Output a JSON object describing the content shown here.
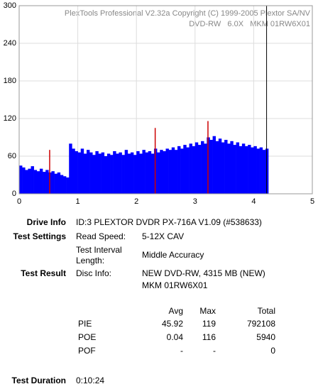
{
  "chart_data": {
    "type": "bar",
    "title": "PlexTools Professional V2.32a Copyright (C) 1999-2005 Plextor SA/NV",
    "subtitle": "DVD-RW   6.0X   MKM 01RW6X01",
    "xlim": [
      0,
      5
    ],
    "xticks": [
      0,
      1,
      2,
      3,
      4,
      5
    ],
    "ylim": [
      0,
      300
    ],
    "yticks": [
      0,
      60,
      120,
      180,
      240,
      300
    ],
    "grid": true,
    "bar_width": 0.05,
    "marker_x": 4.22,
    "series": [
      {
        "color": "#0000ff",
        "x": [
          0,
          0.05,
          0.1,
          0.15,
          0.2,
          0.25,
          0.3,
          0.35,
          0.4,
          0.45,
          0.5,
          0.55,
          0.6,
          0.65,
          0.7,
          0.75,
          0.8,
          0.85,
          0.9,
          0.95,
          1,
          1.05,
          1.1,
          1.15,
          1.2,
          1.25,
          1.3,
          1.35,
          1.4,
          1.45,
          1.5,
          1.55,
          1.6,
          1.65,
          1.7,
          1.75,
          1.8,
          1.85,
          1.9,
          1.95,
          2,
          2.05,
          2.1,
          2.15,
          2.2,
          2.25,
          2.3,
          2.35,
          2.4,
          2.45,
          2.5,
          2.55,
          2.6,
          2.65,
          2.7,
          2.75,
          2.8,
          2.85,
          2.9,
          2.95,
          3,
          3.05,
          3.1,
          3.15,
          3.2,
          3.25,
          3.3,
          3.35,
          3.4,
          3.45,
          3.5,
          3.55,
          3.6,
          3.65,
          3.7,
          3.75,
          3.8,
          3.85,
          3.9,
          3.95,
          4,
          4.05,
          4.1,
          4.15,
          4.2
        ],
        "values": [
          45,
          42,
          38,
          40,
          44,
          38,
          36,
          40,
          35,
          38,
          34,
          36,
          32,
          34,
          30,
          28,
          26,
          80,
          72,
          68,
          66,
          72,
          64,
          70,
          66,
          62,
          68,
          64,
          66,
          60,
          64,
          62,
          68,
          64,
          66,
          62,
          70,
          64,
          66,
          62,
          68,
          64,
          70,
          66,
          68,
          64,
          72,
          66,
          70,
          68,
          72,
          70,
          74,
          70,
          76,
          72,
          78,
          74,
          80,
          76,
          82,
          78,
          84,
          80,
          90,
          86,
          92,
          84,
          88,
          82,
          86,
          80,
          84,
          78,
          82,
          76,
          80,
          76,
          78,
          74,
          76,
          72,
          74,
          70,
          72
        ]
      },
      {
        "color": "#cc0000",
        "x": [
          0.52,
          2.32,
          3.22
        ],
        "values": [
          70,
          105,
          116
        ]
      }
    ]
  },
  "info": {
    "drive_info": {
      "label": "Drive Info",
      "value": "ID:3 PLEXTOR DVDR PX-716A V1.09 (#538633)"
    },
    "test_settings": {
      "label": "Test Settings",
      "rows": [
        [
          "Read Speed:",
          "5-12X CAV"
        ],
        [
          "Test Interval Length:",
          "Middle Accuracy"
        ]
      ]
    },
    "test_result": {
      "label": "Test Result",
      "key": "Disc Info:",
      "lines": [
        "NEW DVD-RW, 4315 MB (NEW)",
        "MKM 01RW6X01"
      ]
    },
    "stats": {
      "headers": [
        "Avg",
        "Max",
        "Total"
      ],
      "rows": [
        [
          "PIE",
          45.92,
          119,
          792108
        ],
        [
          "POE",
          0.04,
          116,
          5940
        ],
        [
          "POF",
          "-",
          "-",
          0
        ]
      ]
    },
    "test_duration": {
      "label": "Test Duration",
      "value": "0:10:24"
    }
  }
}
